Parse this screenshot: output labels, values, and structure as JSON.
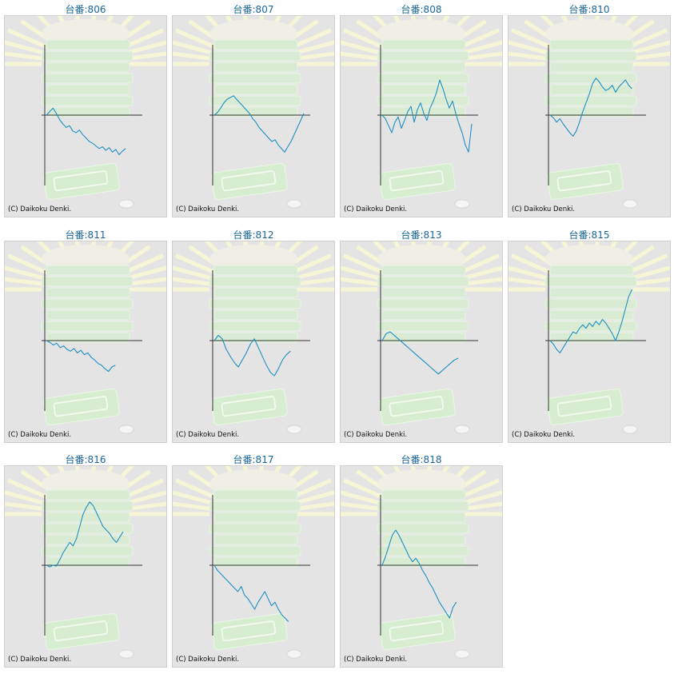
{
  "copyright": "(C) Daikoku Denki.",
  "colors": {
    "line": "#1f8fc4",
    "axis": "#333333",
    "title": "#1a6699",
    "panel": "#e4e4e4"
  },
  "background_icon": "pachislot-machine-watermark",
  "chart_data": [
    {
      "type": "line",
      "title": "台番:806",
      "values": [
        0,
        4,
        8,
        2,
        -5,
        -10,
        -14,
        -12,
        -18,
        -20,
        -17,
        -22,
        -26,
        -30,
        -32,
        -35,
        -38,
        -36,
        -40,
        -37,
        -42,
        -39,
        -45,
        -41,
        -38
      ]
    },
    {
      "type": "line",
      "title": "台番:807",
      "values": [
        0,
        3,
        8,
        14,
        18,
        20,
        22,
        18,
        14,
        10,
        6,
        2,
        -4,
        -8,
        -14,
        -18,
        -22,
        -26,
        -30,
        -28,
        -34,
        -38,
        -42,
        -36,
        -30,
        -22,
        -14,
        -6,
        2
      ]
    },
    {
      "type": "line",
      "title": "台番:808",
      "values": [
        0,
        -4,
        -12,
        -20,
        -8,
        -2,
        -15,
        -6,
        4,
        10,
        -8,
        6,
        14,
        2,
        -6,
        8,
        16,
        26,
        40,
        30,
        18,
        8,
        16,
        2,
        -10,
        -20,
        -34,
        -42,
        -10
      ]
    },
    {
      "type": "line",
      "title": "台番:810",
      "values": [
        0,
        -3,
        -8,
        -4,
        -10,
        -15,
        -20,
        -24,
        -18,
        -8,
        4,
        14,
        24,
        36,
        42,
        38,
        32,
        28,
        30,
        34,
        26,
        32,
        36,
        40,
        34,
        30
      ]
    },
    {
      "type": "line",
      "title": "台番:811",
      "values": [
        0,
        -2,
        -5,
        -3,
        -8,
        -6,
        -10,
        -12,
        -9,
        -14,
        -11,
        -16,
        -14,
        -19,
        -22,
        -26,
        -28,
        -32,
        -35,
        -30,
        -28
      ]
    },
    {
      "type": "line",
      "title": "台番:812",
      "values": [
        0,
        6,
        2,
        -10,
        -18,
        -25,
        -30,
        -22,
        -14,
        -4,
        2,
        -8,
        -18,
        -28,
        -36,
        -40,
        -32,
        -22,
        -16,
        -12
      ]
    },
    {
      "type": "line",
      "title": "台番:813",
      "values": [
        0,
        8,
        10,
        6,
        2,
        -2,
        -6,
        -10,
        -14,
        -18,
        -22,
        -26,
        -30,
        -34,
        -38,
        -34,
        -30,
        -26,
        -22,
        -20
      ]
    },
    {
      "type": "line",
      "title": "台番:815",
      "values": [
        0,
        -4,
        -10,
        -14,
        -8,
        -2,
        4,
        10,
        8,
        14,
        18,
        14,
        20,
        16,
        22,
        18,
        24,
        20,
        14,
        8,
        0,
        10,
        22,
        36,
        50,
        58
      ]
    },
    {
      "type": "line",
      "title": "台番:816",
      "values": [
        0,
        -2,
        0,
        -1,
        6,
        14,
        20,
        26,
        22,
        30,
        44,
        58,
        66,
        72,
        68,
        60,
        52,
        44,
        40,
        36,
        30,
        26,
        32,
        38
      ]
    },
    {
      "type": "line",
      "title": "台番:817",
      "values": [
        0,
        -6,
        -10,
        -14,
        -18,
        -22,
        -26,
        -30,
        -24,
        -34,
        -38,
        -44,
        -50,
        -42,
        -36,
        -30,
        -38,
        -46,
        -42,
        -50,
        -56,
        -60,
        -64
      ]
    },
    {
      "type": "line",
      "title": "台番:818",
      "values": [
        0,
        10,
        22,
        34,
        40,
        34,
        26,
        18,
        10,
        4,
        8,
        2,
        -6,
        -12,
        -20,
        -26,
        -34,
        -42,
        -48,
        -54,
        -60,
        -48,
        -42
      ]
    }
  ]
}
